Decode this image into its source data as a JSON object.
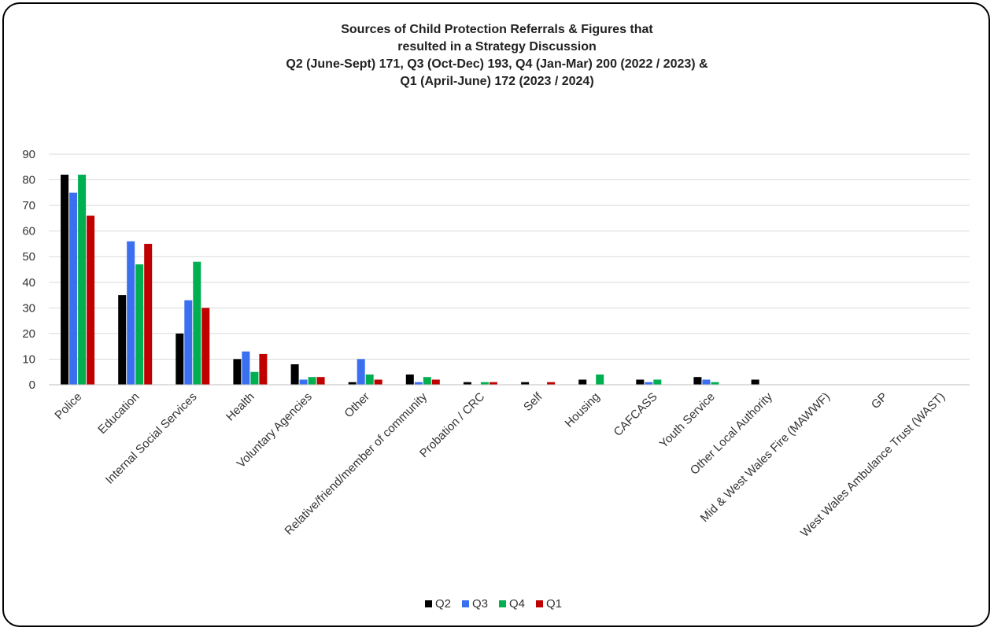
{
  "chart_data": {
    "type": "bar",
    "title_lines": [
      "Sources of Child Protection Referrals & Figures that",
      "resulted in a Strategy Discussion",
      "Q2 (June-Sept) 171, Q3 (Oct-Dec) 193, Q4 (Jan-Mar) 200 (2022 / 2023) &",
      "Q1 (April-June) 172 (2023 / 2024)"
    ],
    "xlabel": "",
    "ylabel": "",
    "ylim": [
      0,
      90
    ],
    "yticks": [
      0,
      10,
      20,
      30,
      40,
      50,
      60,
      70,
      80,
      90
    ],
    "grid": true,
    "legend_position": "bottom",
    "categories": [
      "Police",
      "Education",
      "Internal Social Services",
      "Health",
      "Voluntary Agencies",
      "Other",
      "Relative/friend/member of community",
      "Probation / CRC",
      "Self",
      "Housing",
      "CAFCASS",
      "Youth Service",
      "Other Local Authority",
      "Mid & West Wales Fire (MAWWF)",
      "GP",
      "West Wales Ambulance Trust (WAST)"
    ],
    "series": [
      {
        "name": "Q2",
        "color": "#000000",
        "values": [
          82,
          35,
          20,
          10,
          8,
          1,
          4,
          1,
          1,
          2,
          2,
          3,
          2,
          0,
          0,
          0
        ]
      },
      {
        "name": "Q3",
        "color": "#3a6ff0",
        "values": [
          75,
          56,
          33,
          13,
          2,
          10,
          1,
          0,
          0,
          0,
          1,
          2,
          0,
          0,
          0,
          0
        ]
      },
      {
        "name": "Q4",
        "color": "#00b050",
        "values": [
          82,
          47,
          48,
          5,
          3,
          4,
          3,
          1,
          0,
          4,
          2,
          1,
          0,
          0,
          0,
          0
        ]
      },
      {
        "name": "Q1",
        "color": "#c00000",
        "values": [
          66,
          55,
          30,
          12,
          3,
          2,
          2,
          1,
          1,
          0,
          0,
          0,
          0,
          0,
          0,
          0
        ]
      }
    ]
  }
}
